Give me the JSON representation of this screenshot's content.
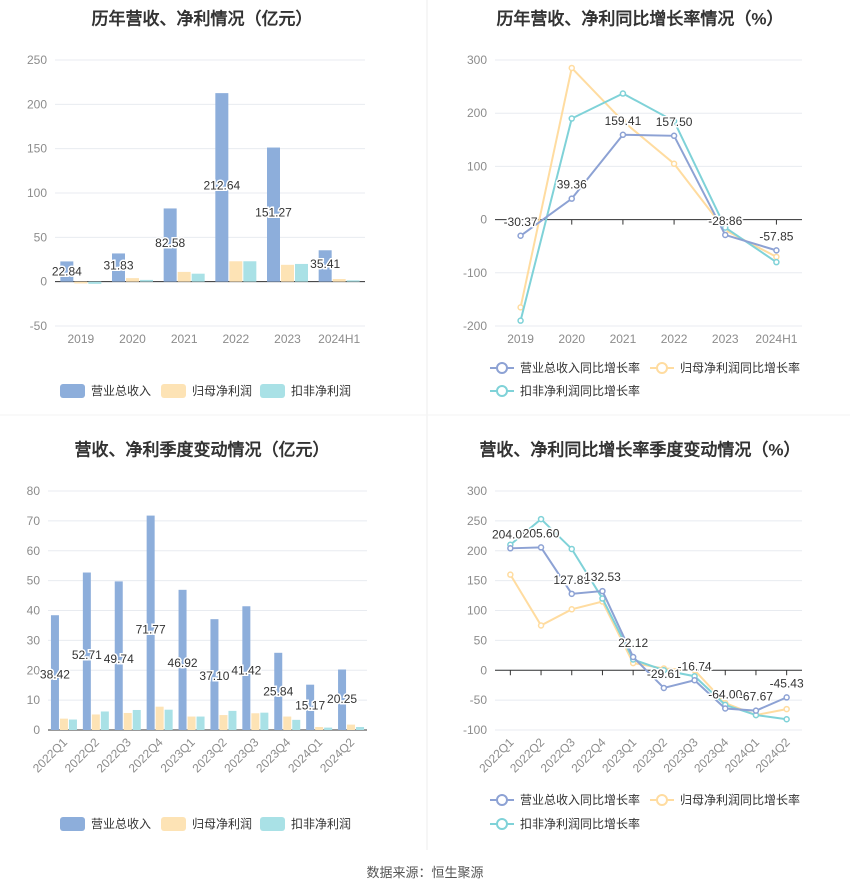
{
  "palette": {
    "revenue": "#8DAEDB",
    "net_profit": "#FDE3B5",
    "deducted_profit": "#A9E1E6",
    "line_revenue": "#8DA2D4",
    "line_net_profit": "#FFDCA0",
    "line_deducted_profit": "#7FD2D8",
    "grid": "#E8EBF0",
    "axis": "#333333",
    "tick_text": "#8C8C8C",
    "title_text": "#333333"
  },
  "source_note": "数据来源：恒生聚源",
  "chart_data": [
    {
      "type": "bar",
      "title": "历年营收、净利情况（亿元）",
      "categories": [
        "2019",
        "2020",
        "2021",
        "2022",
        "2023",
        "2024H1"
      ],
      "ylim": [
        -50,
        250
      ],
      "yticks": [
        -50,
        0,
        50,
        100,
        150,
        200,
        250
      ],
      "grid": true,
      "legend": "bottom",
      "series": [
        {
          "name": "营业总收入",
          "values": [
            22.84,
            31.83,
            82.58,
            212.64,
            151.27,
            35.41
          ],
          "labels": [
            "22.84",
            "31.83",
            "82.58",
            "212.64",
            "151.27",
            "35.41"
          ]
        },
        {
          "name": "归母净利润",
          "values": [
            -2,
            4,
            11,
            23,
            19,
            3
          ]
        },
        {
          "name": "扣非净利润",
          "values": [
            -2.5,
            2,
            9,
            23,
            20,
            1.5
          ]
        }
      ]
    },
    {
      "type": "line",
      "title": "历年营收、净利同比增长率情况（%）",
      "categories": [
        "2019",
        "2020",
        "2021",
        "2022",
        "2023",
        "2024H1"
      ],
      "ylim": [
        -200,
        300
      ],
      "yticks": [
        -200,
        -100,
        0,
        100,
        200,
        300
      ],
      "grid": true,
      "legend": "bottom",
      "series": [
        {
          "name": "营业总收入同比增长率",
          "values": [
            -30.37,
            39.36,
            159.41,
            157.5,
            -28.86,
            -57.85
          ],
          "labels": [
            "-30.37",
            "39.36",
            "159.41",
            "157.50",
            "-28.86",
            "-57.85"
          ]
        },
        {
          "name": "归母净利润同比增长率",
          "values": [
            -165,
            285,
            185,
            105,
            -20,
            -70
          ]
        },
        {
          "name": "扣非净利润同比增长率",
          "values": [
            -190,
            190,
            237,
            185,
            -15,
            -80
          ]
        }
      ]
    },
    {
      "type": "bar",
      "title": "营收、净利季度变动情况（亿元）",
      "categories": [
        "2022Q1",
        "2022Q2",
        "2022Q3",
        "2022Q4",
        "2023Q1",
        "2023Q2",
        "2023Q3",
        "2023Q4",
        "2024Q1",
        "2024Q2"
      ],
      "ylim": [
        0,
        80
      ],
      "yticks": [
        0,
        10,
        20,
        30,
        40,
        50,
        60,
        70,
        80
      ],
      "grid": true,
      "legend": "bottom",
      "series": [
        {
          "name": "营业总收入",
          "values": [
            38.42,
            52.71,
            49.74,
            71.77,
            46.92,
            37.1,
            41.42,
            25.84,
            15.17,
            20.25
          ],
          "labels": [
            "38.42",
            "52.71",
            "49.74",
            "71.77",
            "46.92",
            "37.10",
            "41.42",
            "25.84",
            "15.17",
            "20.25"
          ]
        },
        {
          "name": "归母净利润",
          "values": [
            3.8,
            5.2,
            5.7,
            7.8,
            4.5,
            5.0,
            5.6,
            4.5,
            1.0,
            1.8
          ]
        },
        {
          "name": "扣非净利润",
          "values": [
            3.5,
            6.2,
            6.7,
            6.8,
            4.5,
            6.4,
            5.8,
            3.4,
            0.8,
            1.0
          ]
        }
      ]
    },
    {
      "type": "line",
      "title": "营收、净利同比增长率季度变动情况（%）",
      "categories": [
        "2022Q1",
        "2022Q2",
        "2022Q3",
        "2022Q4",
        "2023Q1",
        "2023Q2",
        "2023Q3",
        "2023Q4",
        "2024Q1",
        "2024Q2"
      ],
      "ylim": [
        -100,
        300
      ],
      "yticks": [
        -100,
        -50,
        0,
        50,
        100,
        150,
        200,
        250,
        300
      ],
      "grid": true,
      "legend": "bottom",
      "series": [
        {
          "name": "营业总收入同比增长率",
          "values": [
            204.08,
            205.6,
            127.88,
            132.53,
            22.12,
            -29.61,
            -16.74,
            -64.0,
            -67.67,
            -45.43
          ],
          "labels": [
            "204.08",
            "205.60",
            "127.88",
            "132.53",
            "22.12",
            "-29.61",
            "-16.74",
            "-64.00",
            "-67.67",
            "-45.43"
          ]
        },
        {
          "name": "归母净利润同比增长率",
          "values": [
            160,
            75,
            102,
            115,
            12,
            3,
            0,
            -55,
            -75,
            -65
          ]
        },
        {
          "name": "扣非净利润同比增长率",
          "values": [
            210,
            253,
            203,
            120,
            18,
            0,
            -10,
            -58,
            -75,
            -82
          ]
        }
      ]
    }
  ]
}
